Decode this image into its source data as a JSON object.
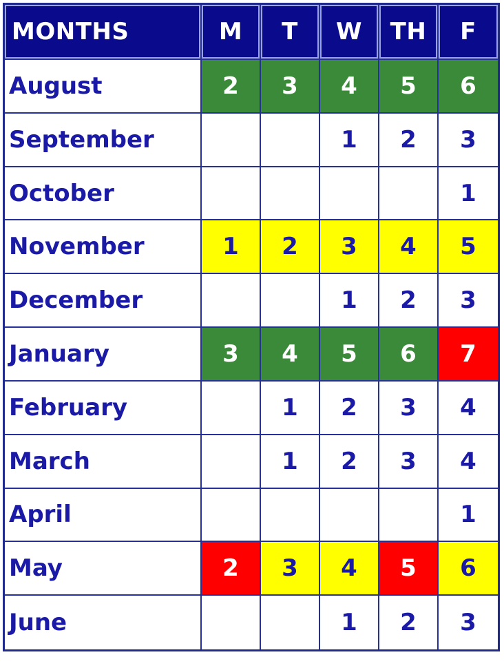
{
  "headers": [
    "MONTHS",
    "M",
    "T",
    "W",
    "TH",
    "F"
  ],
  "rows": [
    {
      "month": "August",
      "days": [
        "2",
        "3",
        "4",
        "5",
        "6"
      ],
      "colors": [
        "green",
        "green",
        "green",
        "green",
        "green"
      ]
    },
    {
      "month": "September",
      "days": [
        "",
        "",
        "1",
        "2",
        "3"
      ],
      "colors": [
        "",
        "",
        "",
        "",
        ""
      ]
    },
    {
      "month": "October",
      "days": [
        "",
        "",
        "",
        "",
        "1"
      ],
      "colors": [
        "",
        "",
        "",
        "",
        ""
      ]
    },
    {
      "month": "November",
      "days": [
        "1",
        "2",
        "3",
        "4",
        "5"
      ],
      "colors": [
        "yellow",
        "yellow",
        "yellow",
        "yellow",
        "yellow"
      ]
    },
    {
      "month": "December",
      "days": [
        "",
        "",
        "1",
        "2",
        "3"
      ],
      "colors": [
        "",
        "",
        "",
        "",
        ""
      ]
    },
    {
      "month": "January",
      "days": [
        "3",
        "4",
        "5",
        "6",
        "7"
      ],
      "colors": [
        "green",
        "green",
        "green",
        "green",
        "red"
      ]
    },
    {
      "month": "February",
      "days": [
        "",
        "1",
        "2",
        "3",
        "4"
      ],
      "colors": [
        "",
        "",
        "",
        "",
        ""
      ]
    },
    {
      "month": "March",
      "days": [
        "",
        "1",
        "2",
        "3",
        "4"
      ],
      "colors": [
        "",
        "",
        "",
        "",
        ""
      ]
    },
    {
      "month": "April",
      "days": [
        "",
        "",
        "",
        "",
        "1"
      ],
      "colors": [
        "",
        "",
        "",
        "",
        ""
      ]
    },
    {
      "month": "May",
      "days": [
        "2",
        "3",
        "4",
        "5",
        "6"
      ],
      "colors": [
        "red",
        "yellow",
        "yellow",
        "red",
        "yellow"
      ]
    },
    {
      "month": "June",
      "days": [
        "",
        "",
        "1",
        "2",
        "3"
      ],
      "colors": [
        "",
        "",
        "",
        "",
        ""
      ]
    }
  ],
  "colors": {
    "header_bg": "#0a0a8c",
    "text": "#1a1aa6",
    "green": "#3a8a3a",
    "yellow": "#ffff00",
    "red": "#ff0000"
  }
}
